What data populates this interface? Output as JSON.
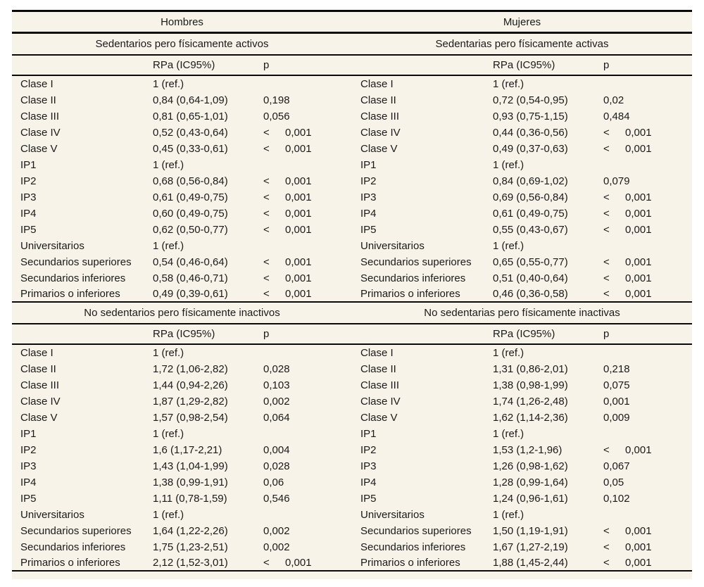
{
  "colors": {
    "table_bg": "#f7f3e9",
    "rule": "#0a0a0a",
    "text": "#1a1a1a",
    "page_bg": "#ffffff"
  },
  "table": {
    "col_headers": {
      "label": "",
      "rpa": "RPa (IC95%)",
      "p": "p"
    },
    "groups": [
      {
        "name": "Hombres",
        "sections": [
          {
            "title": "Sedentarios pero físicamente activos",
            "rows": [
              [
                "Clase I",
                "1 (ref.)",
                ""
              ],
              [
                "Clase II",
                "0,84 (0,64-1,09)",
                "0,198"
              ],
              [
                "Clase III",
                "0,81 (0,65-1,01)",
                "0,056"
              ],
              [
                "Clase IV",
                "0,52 (0,43-0,64)",
                "< 0,001"
              ],
              [
                "Clase V",
                "0,45 (0,33-0,61)",
                "< 0,001"
              ],
              [
                "IP1",
                "1 (ref.)",
                ""
              ],
              [
                "IP2",
                "0,68 (0,56-0,84)",
                "< 0,001"
              ],
              [
                "IP3",
                "0,61 (0,49-0,75)",
                "< 0,001"
              ],
              [
                "IP4",
                "0,60 (0,49-0,75)",
                "< 0,001"
              ],
              [
                "IP5",
                "0,62 (0,50-0,77)",
                "< 0,001"
              ],
              [
                "Universitarios",
                "1 (ref.)",
                ""
              ],
              [
                "Secundarios superiores",
                "0,54 (0,46-0,64)",
                "< 0,001"
              ],
              [
                "Secundarios inferiores",
                "0,58 (0,46-0,71)",
                "< 0,001"
              ],
              [
                "Primarios o inferiores",
                "0,49 (0,39-0,61)",
                "< 0,001"
              ]
            ]
          },
          {
            "title": "No sedentarios pero físicamente inactivos",
            "rows": [
              [
                "Clase I",
                "1 (ref.)",
                ""
              ],
              [
                "Clase II",
                "1,72 (1,06-2,82)",
                "0,028"
              ],
              [
                "Clase III",
                "1,44 (0,94-2,26)",
                "0,103"
              ],
              [
                "Clase IV",
                "1,87 (1,29-2,82)",
                "0,002"
              ],
              [
                "Clase V",
                "1,57 (0,98-2,54)",
                "0,064"
              ],
              [
                "IP1",
                "1 (ref.)",
                ""
              ],
              [
                "IP2",
                "1,6 (1,17-2,21)",
                "0,004"
              ],
              [
                "IP3",
                "1,43 (1,04-1,99)",
                "0,028"
              ],
              [
                "IP4",
                "1,38 (0,99-1,91)",
                "0,06"
              ],
              [
                "IP5",
                "1,11 (0,78-1,59)",
                "0,546"
              ],
              [
                "Universitarios",
                "1 (ref.)",
                ""
              ],
              [
                "Secundarios superiores",
                "1,64 (1,22-2,26)",
                "0,002"
              ],
              [
                "Secundarios inferiores",
                "1,75 (1,23-2,51)",
                "0,002"
              ],
              [
                "Primarios o inferiores",
                "2,12 (1,52-3,01)",
                "< 0,001"
              ]
            ]
          }
        ]
      },
      {
        "name": "Mujeres",
        "sections": [
          {
            "title": "Sedentarias pero físicamente activas",
            "rows": [
              [
                "Clase I",
                "1 (ref.)",
                ""
              ],
              [
                "Clase II",
                "0,72 (0,54-0,95)",
                "0,02"
              ],
              [
                "Clase III",
                "0,93 (0,75-1,15)",
                "0,484"
              ],
              [
                "Clase IV",
                "0,44 (0,36-0,56)",
                "< 0,001"
              ],
              [
                "Clase V",
                "0,49 (0,37-0,63)",
                "< 0,001"
              ],
              [
                "IP1",
                "1 (ref.)",
                ""
              ],
              [
                "IP2",
                "0,84 (0,69-1,02)",
                "0,079"
              ],
              [
                "IP3",
                "0,69 (0,56-0,84)",
                "< 0,001"
              ],
              [
                "IP4",
                "0,61 (0,49-0,75)",
                "< 0,001"
              ],
              [
                "IP5",
                "0,55 (0,43-0,67)",
                "< 0,001"
              ],
              [
                "Universitarios",
                "1 (ref.)",
                ""
              ],
              [
                "Secundarios superiores",
                "0,65 (0,55-0,77)",
                "< 0,001"
              ],
              [
                "Secundarios inferiores",
                "0,51 (0,40-0,64)",
                "< 0,001"
              ],
              [
                "Primarios o inferiores",
                "0,46 (0,36-0,58)",
                "< 0,001"
              ]
            ]
          },
          {
            "title": "No sedentarias pero físicamente inactivas",
            "rows": [
              [
                "Clase I",
                "1 (ref.)",
                ""
              ],
              [
                "Clase II",
                "1,31 (0,86-2,01)",
                "0,218"
              ],
              [
                "Clase III",
                "1,38 (0,98-1,99)",
                "0,075"
              ],
              [
                "Clase IV",
                "1,74 (1,26-2,48)",
                "0,001"
              ],
              [
                "Clase V",
                "1,62 (1,14-2,36)",
                "0,009"
              ],
              [
                "IP1",
                "1 (ref.)",
                ""
              ],
              [
                "IP2",
                "1,53 (1,2-1,96)",
                "< 0,001"
              ],
              [
                "IP3",
                "1,26 (0,98-1,62)",
                "0,067"
              ],
              [
                "IP4",
                "1,28 (0,99-1,64)",
                "0,05"
              ],
              [
                "IP5",
                "1,24 (0,96-1,61)",
                "0,102"
              ],
              [
                "Universitarios",
                "1 (ref.)",
                ""
              ],
              [
                "Secundarios superiores",
                "1,50 (1,19-1,91)",
                "< 0,001"
              ],
              [
                "Secundarios inferiores",
                "1,67 (1,27-2,19)",
                "< 0,001"
              ],
              [
                "Primarios o inferiores",
                "1,88 (1,45-2,44)",
                "< 0,001"
              ]
            ]
          }
        ]
      }
    ]
  }
}
